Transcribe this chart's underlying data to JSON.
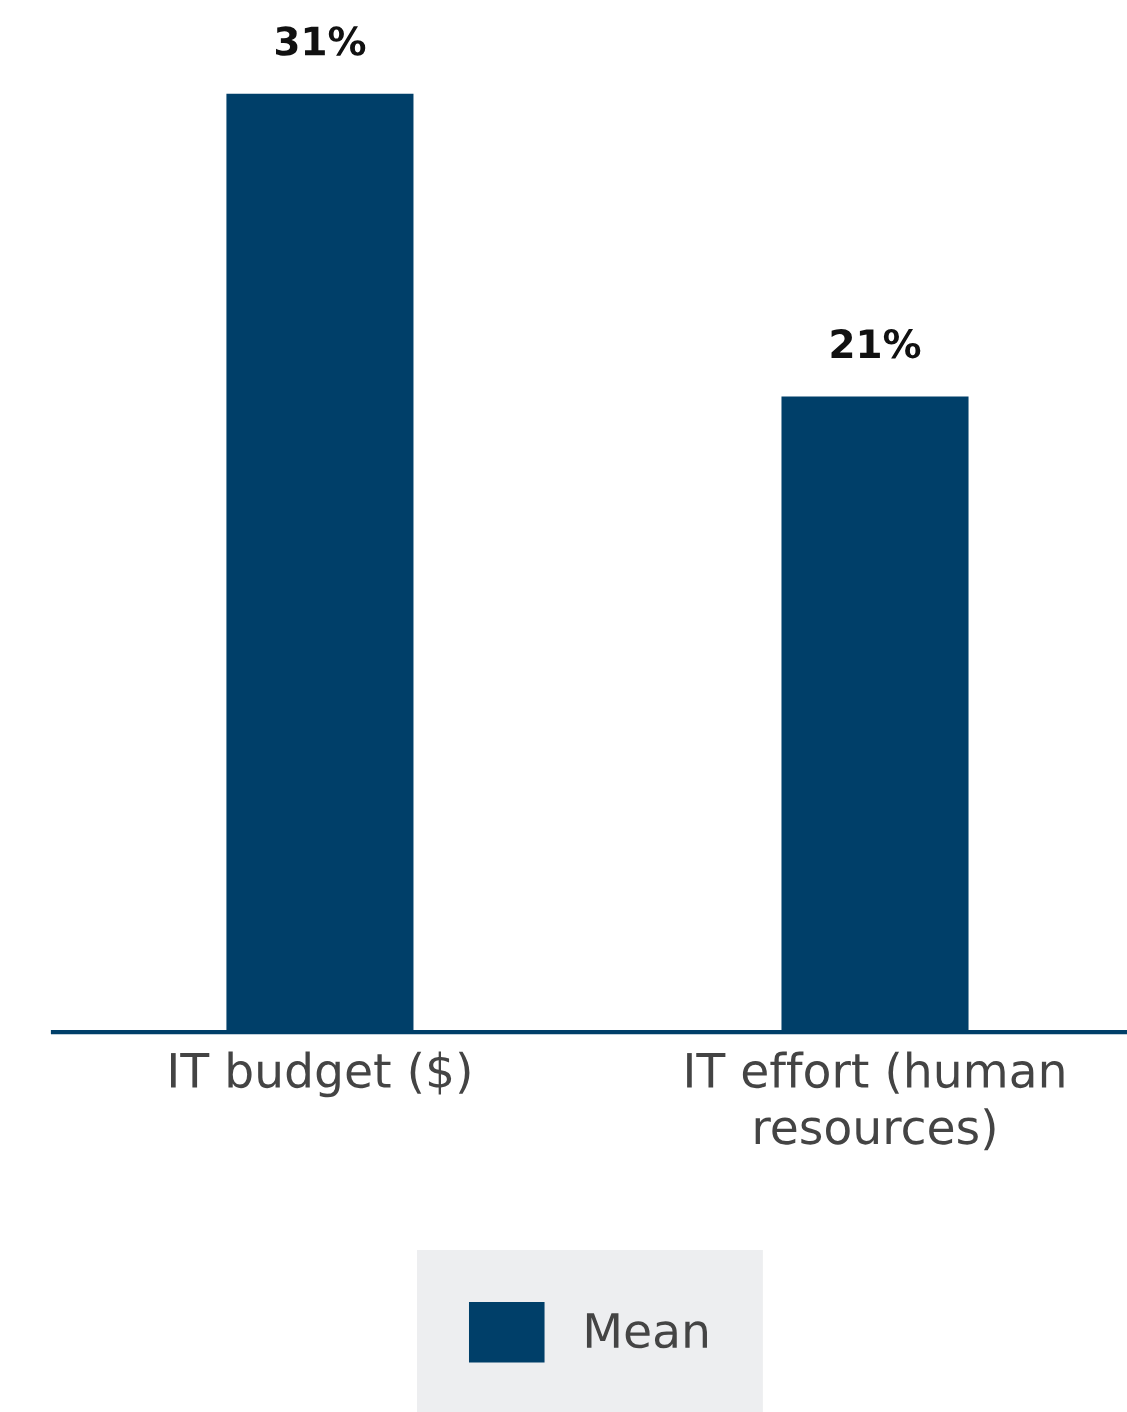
{
  "chart_data": {
    "type": "bar",
    "categories": [
      "IT budget ($)",
      "IT effort (human\nresources)"
    ],
    "series": [
      {
        "name": "Mean",
        "color": "#003f69",
        "values": [
          31,
          21
        ],
        "value_labels": [
          "31%",
          "21%"
        ]
      }
    ],
    "grid": false,
    "legend": "bottom"
  }
}
